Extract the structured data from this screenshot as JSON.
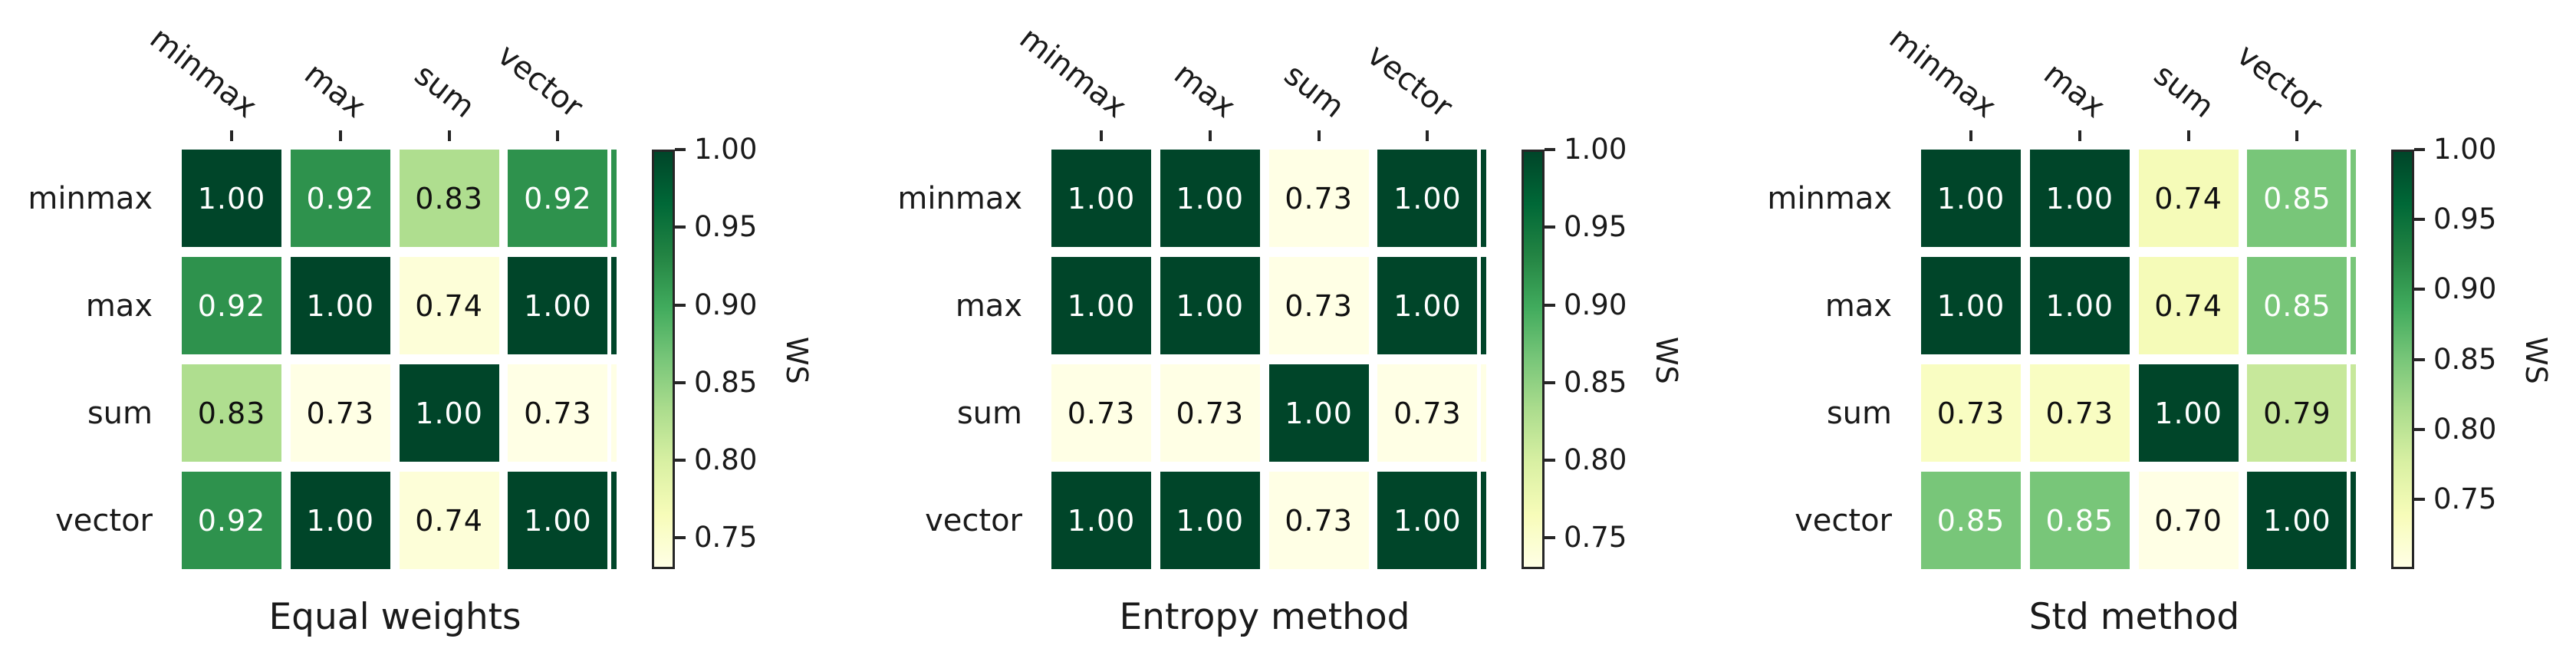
{
  "chart_data": [
    {
      "type": "heatmap",
      "title": "Equal weights",
      "x_categories": [
        "minmax",
        "max",
        "sum",
        "vector"
      ],
      "y_categories": [
        "minmax",
        "max",
        "sum",
        "vector"
      ],
      "values": [
        [
          1.0,
          0.92,
          0.83,
          0.92
        ],
        [
          0.92,
          1.0,
          0.74,
          1.0
        ],
        [
          0.83,
          0.73,
          1.0,
          0.73
        ],
        [
          0.92,
          1.0,
          0.74,
          1.0
        ]
      ],
      "vmin": 0.73,
      "vmax": 1.0,
      "colorbar": {
        "label": "WS",
        "ticks": [
          "1.00",
          "0.95",
          "0.90",
          "0.85",
          "0.80",
          "0.75"
        ]
      }
    },
    {
      "type": "heatmap",
      "title": "Entropy method",
      "x_categories": [
        "minmax",
        "max",
        "sum",
        "vector"
      ],
      "y_categories": [
        "minmax",
        "max",
        "sum",
        "vector"
      ],
      "values": [
        [
          1.0,
          1.0,
          0.73,
          1.0
        ],
        [
          1.0,
          1.0,
          0.73,
          1.0
        ],
        [
          0.73,
          0.73,
          1.0,
          0.73
        ],
        [
          1.0,
          1.0,
          0.73,
          1.0
        ]
      ],
      "vmin": 0.73,
      "vmax": 1.0,
      "colorbar": {
        "label": "WS",
        "ticks": [
          "1.00",
          "0.95",
          "0.90",
          "0.85",
          "0.80",
          "0.75"
        ]
      }
    },
    {
      "type": "heatmap",
      "title": "Std method",
      "x_categories": [
        "minmax",
        "max",
        "sum",
        "vector"
      ],
      "y_categories": [
        "minmax",
        "max",
        "sum",
        "vector"
      ],
      "values": [
        [
          1.0,
          1.0,
          0.74,
          0.85
        ],
        [
          1.0,
          1.0,
          0.74,
          0.85
        ],
        [
          0.73,
          0.73,
          1.0,
          0.79
        ],
        [
          0.85,
          0.85,
          0.7,
          1.0
        ]
      ],
      "vmin": 0.7,
      "vmax": 1.0,
      "colorbar": {
        "label": "WS",
        "ticks": [
          "1.00",
          "0.95",
          "0.90",
          "0.85",
          "0.80",
          "0.75"
        ]
      }
    }
  ],
  "style": {
    "colormap_name": "YlGn",
    "colormap_stops": [
      "#ffffe5",
      "#f7fcb9",
      "#d9f0a3",
      "#addd8e",
      "#78c679",
      "#41ab5d",
      "#238443",
      "#006837",
      "#004529"
    ],
    "annot_color_light": "#ffffff",
    "annot_color_dark": "#101010",
    "tick_color": "#262626",
    "label_color": "#1a1a1a",
    "background": "#ffffff"
  }
}
